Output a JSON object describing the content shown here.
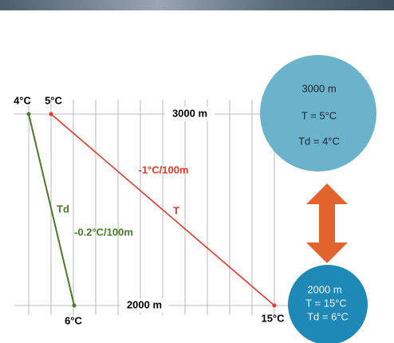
{
  "temperature_labels": {
    "top_td": "4°C",
    "top_t": "5°C",
    "bottom_td": "6°C",
    "bottom_t": "15°C"
  },
  "altitude_labels": {
    "top": "3000 m",
    "bottom": "2000 m"
  },
  "line_labels": {
    "t_rate": "-1°C/100m",
    "t_name": "T",
    "td_name": "Td",
    "td_rate": "-0.2°C/100m"
  },
  "top_circle": {
    "altitude": "3000 m",
    "t": "T = 5°C",
    "td": "Td = 4°C"
  },
  "bottom_circle": {
    "altitude": "2000 m",
    "t": "T = 15°C",
    "td": "Td = 6°C"
  }
}
